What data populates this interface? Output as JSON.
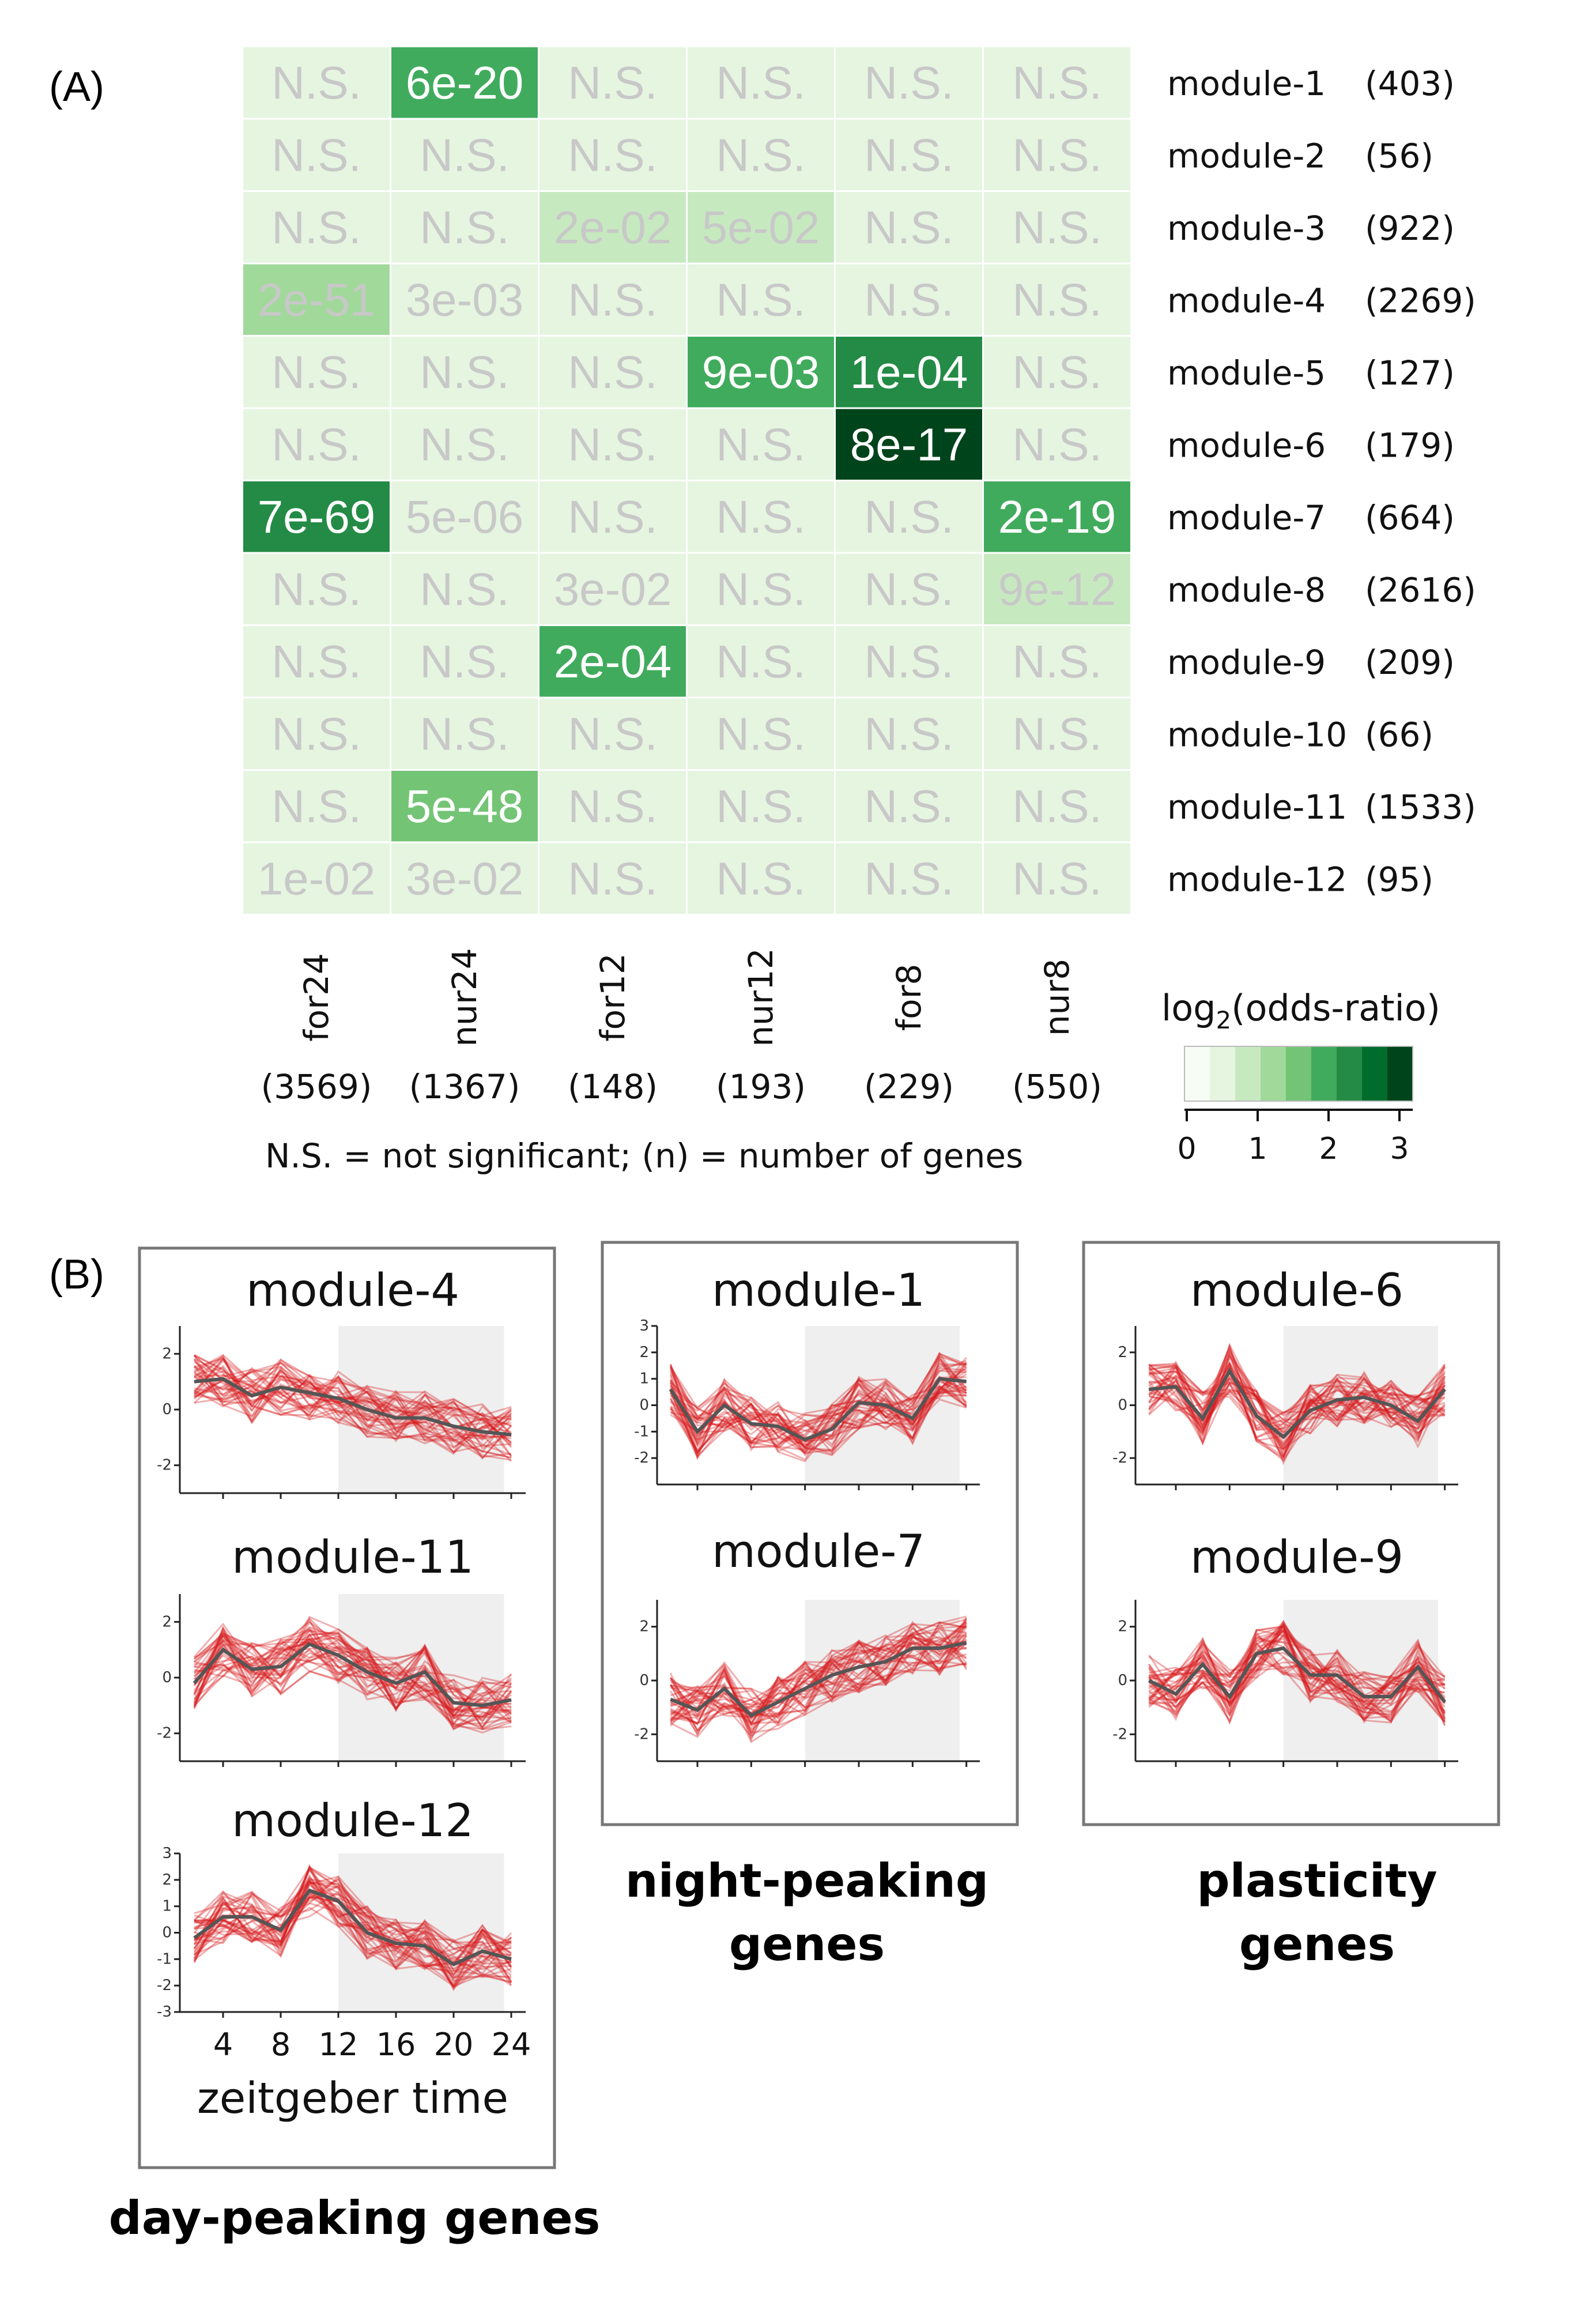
{
  "panel_labels": {
    "a": "(A)",
    "b": "(B)"
  },
  "heatmap": {
    "columns": [
      "for24",
      "nur24",
      "for12",
      "nur12",
      "for8",
      "nur8"
    ],
    "column_counts": [
      "(3569)",
      "(1367)",
      "(148)",
      "(193)",
      "(229)",
      "(550)"
    ],
    "rows": [
      {
        "label": "module-1",
        "count": "(403)",
        "cells": [
          "N.S.",
          "6e-20",
          "N.S.",
          "N.S.",
          "N.S.",
          "N.S."
        ],
        "log2_or": [
          0.2,
          1.8,
          0.2,
          0.2,
          0.2,
          0.2
        ]
      },
      {
        "label": "module-2",
        "count": "(56)",
        "cells": [
          "N.S.",
          "N.S.",
          "N.S.",
          "N.S.",
          "N.S.",
          "N.S."
        ],
        "log2_or": [
          0.2,
          0.2,
          0.2,
          0.2,
          0.2,
          0.2
        ]
      },
      {
        "label": "module-3",
        "count": "(922)",
        "cells": [
          "N.S.",
          "N.S.",
          "2e-02",
          "5e-02",
          "N.S.",
          "N.S."
        ],
        "log2_or": [
          0.2,
          0.2,
          0.8,
          0.8,
          0.2,
          0.2
        ]
      },
      {
        "label": "module-4",
        "count": "(2269)",
        "cells": [
          "2e-51",
          "3e-03",
          "N.S.",
          "N.S.",
          "N.S.",
          "N.S."
        ],
        "log2_or": [
          1.0,
          0.2,
          0.2,
          0.2,
          0.2,
          0.2
        ]
      },
      {
        "label": "module-5",
        "count": "(127)",
        "cells": [
          "N.S.",
          "N.S.",
          "N.S.",
          "9e-03",
          "1e-04",
          "N.S."
        ],
        "log2_or": [
          0.2,
          0.2,
          0.2,
          2.0,
          2.4,
          0.2
        ]
      },
      {
        "label": "module-6",
        "count": "(179)",
        "cells": [
          "N.S.",
          "N.S.",
          "N.S.",
          "N.S.",
          "8e-17",
          "N.S."
        ],
        "log2_or": [
          0.2,
          0.2,
          0.2,
          0.2,
          3.1,
          0.2
        ]
      },
      {
        "label": "module-7",
        "count": "(664)",
        "cells": [
          "7e-69",
          "5e-06",
          "N.S.",
          "N.S.",
          "N.S.",
          "2e-19"
        ],
        "log2_or": [
          2.3,
          0.4,
          0.2,
          0.2,
          0.2,
          1.8
        ]
      },
      {
        "label": "module-8",
        "count": "(2616)",
        "cells": [
          "N.S.",
          "N.S.",
          "3e-02",
          "N.S.",
          "N.S.",
          "9e-12"
        ],
        "log2_or": [
          0.2,
          0.2,
          0.4,
          0.2,
          0.2,
          0.8
        ]
      },
      {
        "label": "module-9",
        "count": "(209)",
        "cells": [
          "N.S.",
          "N.S.",
          "2e-04",
          "N.S.",
          "N.S.",
          "N.S."
        ],
        "log2_or": [
          0.2,
          0.2,
          2.1,
          0.2,
          0.2,
          0.2
        ]
      },
      {
        "label": "module-10",
        "count": "(66)",
        "cells": [
          "N.S.",
          "N.S.",
          "N.S.",
          "N.S.",
          "N.S.",
          "N.S."
        ],
        "log2_or": [
          0.2,
          0.2,
          0.2,
          0.2,
          0.2,
          0.2
        ]
      },
      {
        "label": "module-11",
        "count": "(1533)",
        "cells": [
          "N.S.",
          "5e-48",
          "N.S.",
          "N.S.",
          "N.S.",
          "N.S."
        ],
        "log2_or": [
          0.2,
          1.6,
          0.2,
          0.2,
          0.2,
          0.2
        ]
      },
      {
        "label": "module-12",
        "count": "(95)",
        "cells": [
          "1e-02",
          "3e-02",
          "N.S.",
          "N.S.",
          "N.S.",
          "N.S."
        ],
        "log2_or": [
          0.6,
          0.6,
          0.2,
          0.2,
          0.2,
          0.2
        ]
      }
    ],
    "footnote": "N.S. = not significant;    (n) = number of genes",
    "legend": {
      "title_prefix": "log",
      "title_sub": "2",
      "title_suffix": "(odds-ratio)",
      "ticks": [
        "0",
        "1",
        "2",
        "3"
      ],
      "colors": [
        "#f7fcf5",
        "#e5f5e0",
        "#c7e9c0",
        "#a1d99b",
        "#74c476",
        "#41ab5d",
        "#238b45",
        "#006d2c",
        "#00441b"
      ]
    }
  },
  "chart_data": [
    {
      "type": "line",
      "title": "module-4",
      "group": "day-peaking genes",
      "x": [
        2,
        4,
        6,
        8,
        10,
        12,
        14,
        16,
        18,
        20,
        22,
        24
      ],
      "mean": [
        1.0,
        1.1,
        0.5,
        0.8,
        0.6,
        0.4,
        0.0,
        -0.3,
        -0.3,
        -0.6,
        -0.8,
        -0.9
      ],
      "yticks": [
        "2",
        "0",
        "-2"
      ],
      "ylim": [
        -3,
        3
      ],
      "night_shade": [
        12,
        23.5
      ]
    },
    {
      "type": "line",
      "title": "module-11",
      "group": "day-peaking genes",
      "x": [
        2,
        4,
        6,
        8,
        10,
        12,
        14,
        16,
        18,
        20,
        22,
        24
      ],
      "mean": [
        -0.2,
        1.0,
        0.3,
        0.4,
        1.2,
        0.8,
        0.2,
        -0.2,
        0.2,
        -0.9,
        -1.0,
        -0.8
      ],
      "yticks": [
        "2",
        "0",
        "-2"
      ],
      "ylim": [
        -3,
        3
      ],
      "night_shade": [
        12,
        23.5
      ]
    },
    {
      "type": "line",
      "title": "module-12",
      "group": "day-peaking genes",
      "x": [
        2,
        4,
        6,
        8,
        10,
        12,
        14,
        16,
        18,
        20,
        22,
        24
      ],
      "mean": [
        -0.2,
        0.6,
        0.6,
        0.1,
        1.6,
        1.2,
        0.0,
        -0.4,
        -0.5,
        -1.2,
        -0.7,
        -1.0
      ],
      "yticks": [
        "3",
        "2",
        "1",
        "0",
        "-1",
        "-2",
        "-3"
      ],
      "ylim": [
        -3,
        3
      ],
      "night_shade": [
        12,
        23.5
      ],
      "xticks": [
        "4",
        "8",
        "12",
        "16",
        "20",
        "24"
      ],
      "xlabel": "zeitgeber time"
    },
    {
      "type": "line",
      "title": "module-1",
      "group": "night-peaking genes",
      "x": [
        2,
        4,
        6,
        8,
        10,
        12,
        14,
        16,
        18,
        20,
        22,
        24
      ],
      "mean": [
        0.6,
        -1.0,
        0.0,
        -0.7,
        -0.8,
        -1.3,
        -0.9,
        0.1,
        0.0,
        -0.5,
        1.0,
        0.9
      ],
      "yticks": [
        "3",
        "2",
        "1",
        "0",
        "-1",
        "-2"
      ],
      "ylim": [
        -3,
        3
      ],
      "night_shade": [
        12,
        23.5
      ]
    },
    {
      "type": "line",
      "title": "module-7",
      "group": "night-peaking genes",
      "x": [
        2,
        4,
        6,
        8,
        10,
        12,
        14,
        16,
        18,
        20,
        22,
        24
      ],
      "mean": [
        -0.7,
        -1.1,
        -0.3,
        -1.3,
        -0.8,
        -0.3,
        0.2,
        0.5,
        0.7,
        1.2,
        1.2,
        1.4
      ],
      "yticks": [
        "2",
        "0",
        "-2"
      ],
      "ylim": [
        -3,
        3
      ],
      "night_shade": [
        12,
        23.5
      ]
    },
    {
      "type": "line",
      "title": "module-6",
      "group": "plasticity genes",
      "x": [
        2,
        4,
        6,
        8,
        10,
        12,
        14,
        16,
        18,
        20,
        22,
        24
      ],
      "mean": [
        0.6,
        0.7,
        -0.5,
        1.3,
        -0.4,
        -1.2,
        -0.2,
        0.2,
        0.3,
        0.0,
        -0.6,
        0.6
      ],
      "yticks": [
        "2",
        "0",
        "-2"
      ],
      "ylim": [
        -3,
        3
      ],
      "night_shade": [
        12,
        23.5
      ]
    },
    {
      "type": "line",
      "title": "module-9",
      "group": "plasticity genes",
      "x": [
        2,
        4,
        6,
        8,
        10,
        12,
        14,
        16,
        18,
        20,
        22,
        24
      ],
      "mean": [
        0.0,
        -0.5,
        0.6,
        -0.6,
        1.0,
        1.2,
        0.2,
        0.2,
        -0.6,
        -0.6,
        0.5,
        -0.8
      ],
      "yticks": [
        "2",
        "0",
        "-2"
      ],
      "ylim": [
        -3,
        3
      ],
      "night_shade": [
        12,
        23.5
      ]
    }
  ],
  "groups": {
    "day": "day-peaking genes",
    "night_1": "night-peaking",
    "night_2": "genes",
    "plasticity_1": "plasticity",
    "plasticity_2": "genes"
  },
  "colors": {
    "line_band": "#d7191c",
    "mean_line": "#555555",
    "night_shade": "#efefef",
    "ns_text": "#c8c8c8"
  }
}
